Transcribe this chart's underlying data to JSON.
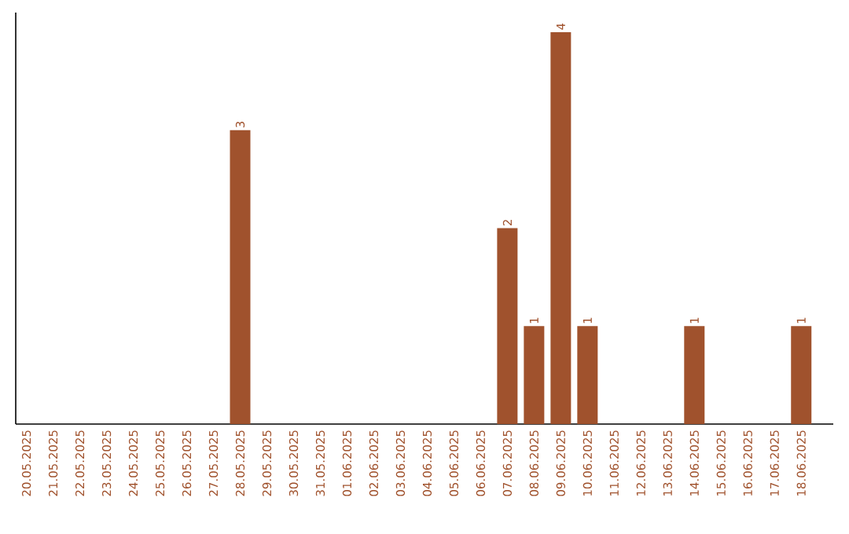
{
  "chart_data": {
    "type": "bar",
    "categories": [
      "20.05.2025",
      "21.05.2025",
      "22.05.2025",
      "23.05.2025",
      "24.05.2025",
      "25.05.2025",
      "26.05.2025",
      "27.05.2025",
      "28.05.2025",
      "29.05.2025",
      "30.05.2025",
      "31.05.2025",
      "01.06.2025",
      "02.06.2025",
      "03.06.2025",
      "04.06.2025",
      "05.06.2025",
      "06.06.2025",
      "07.06.2025",
      "08.06.2025",
      "09.06.2025",
      "10.06.2025",
      "11.06.2025",
      "12.06.2025",
      "13.06.2025",
      "14.06.2025",
      "15.06.2025",
      "16.06.2025",
      "17.06.2025",
      "18.06.2025"
    ],
    "values": [
      0,
      0,
      0,
      0,
      0,
      0,
      0,
      0,
      3,
      0,
      0,
      0,
      0,
      0,
      0,
      0,
      0,
      0,
      2,
      1,
      4,
      1,
      0,
      0,
      0,
      1,
      0,
      0,
      0,
      1
    ],
    "value_labels": [
      null,
      null,
      null,
      null,
      null,
      null,
      null,
      null,
      "3",
      null,
      null,
      null,
      null,
      null,
      null,
      null,
      null,
      null,
      "2",
      "1",
      "4",
      "1",
      null,
      null,
      null,
      "1",
      null,
      null,
      null,
      "1"
    ],
    "color": "#a0522d",
    "ylim": [
      0,
      4.2
    ],
    "tick_labels": "x"
  }
}
